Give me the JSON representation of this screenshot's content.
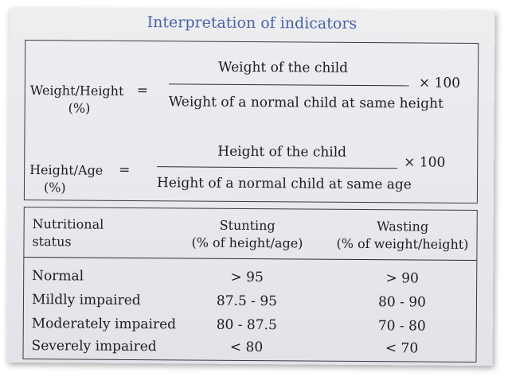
{
  "title": "Interpretation of indicators",
  "formulas": [
    {
      "lhs": "Weight/Height",
      "lhs_unit": "(%)",
      "equals": "=",
      "numerator": "Weight of the child",
      "denominator": "Weight of a normal child at same height",
      "multiplier": "× 100"
    },
    {
      "lhs": "Height/Age",
      "lhs_unit": "(%)",
      "equals": "=",
      "numerator": "Height of the child",
      "denominator": "Height of a normal child at same age",
      "multiplier": "× 100"
    }
  ],
  "table": {
    "headers": {
      "col1_line1": "Nutritional",
      "col1_line2": "status",
      "col2_line1": "Stunting",
      "col2_line2": "(% of height/age)",
      "col3_line1": "Wasting",
      "col3_line2": "(% of weight/height)"
    },
    "rows": [
      {
        "status": "Normal",
        "stunting": "> 95",
        "wasting": "> 90"
      },
      {
        "status": "Mildly impaired",
        "stunting": "87.5 - 95",
        "wasting": "80 - 90"
      },
      {
        "status": "Moderately impaired",
        "stunting": "80 - 87.5",
        "wasting": "70 - 80"
      },
      {
        "status": "Severely impaired",
        "stunting": "< 80",
        "wasting": "< 70"
      }
    ]
  }
}
